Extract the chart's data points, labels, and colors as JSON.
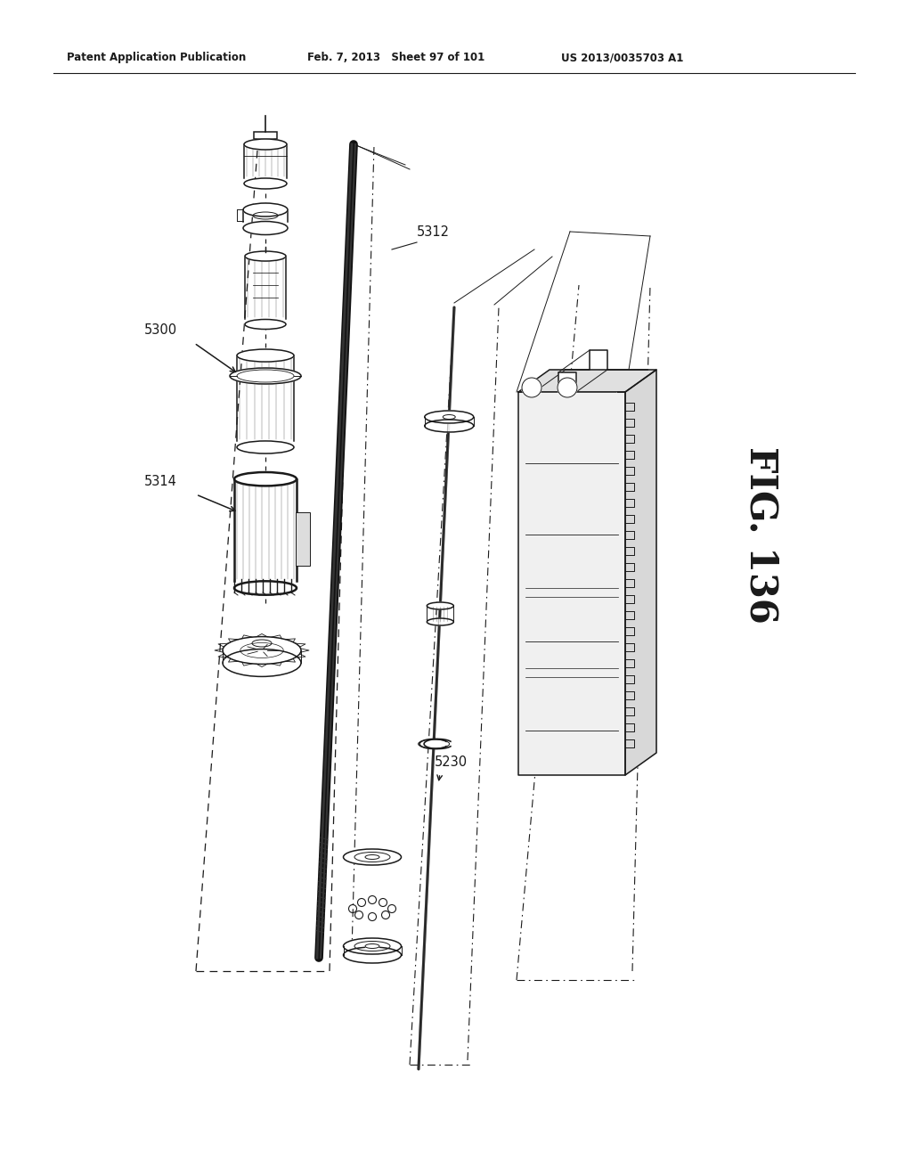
{
  "header_left": "Patent Application Publication",
  "header_middle": "Feb. 7, 2013   Sheet 97 of 101",
  "header_right": "US 2013/0035703 A1",
  "fig_label": "FIG. 136",
  "bg_color": "#ffffff",
  "line_color": "#1a1a1a"
}
